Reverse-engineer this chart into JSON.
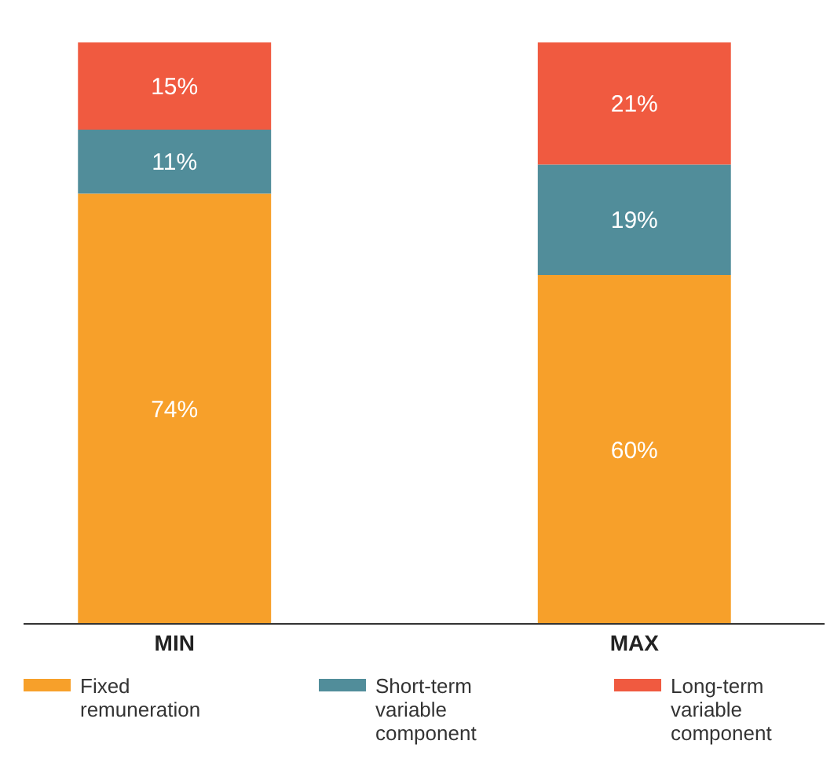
{
  "chart_data": {
    "type": "bar",
    "stacked": true,
    "legend": "bottom",
    "categories": [
      "MIN",
      "MAX"
    ],
    "ylim": [
      0,
      100
    ],
    "tick_labels": "x",
    "series": [
      {
        "name": "Fixed remuneration",
        "color": "#f7a02a",
        "values": [
          74,
          60
        ],
        "value_labels": [
          "74%",
          "60%"
        ]
      },
      {
        "name": "Short-term variable component",
        "color": "#518d9a",
        "values": [
          11,
          19
        ],
        "value_labels": [
          "11%",
          "19%"
        ]
      },
      {
        "name": "Long-term variable component",
        "color": "#f05a40",
        "values": [
          15,
          21
        ],
        "value_labels": [
          "15%",
          "21%"
        ]
      }
    ]
  }
}
